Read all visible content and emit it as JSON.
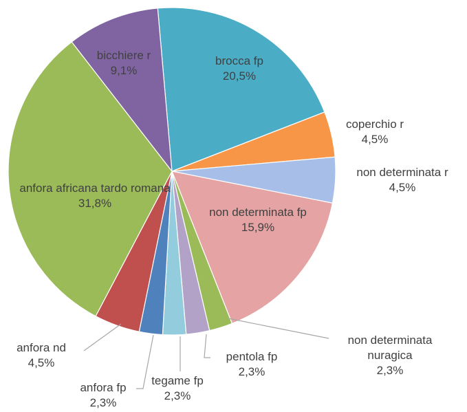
{
  "chart_data": {
    "type": "pie",
    "categories": [
      "brocca fp",
      "coperchio r",
      "non determinata r",
      "non determinata fp",
      "non determinata nuragica",
      "pentola fp",
      "tegame fp",
      "anfora fp",
      "anfora nd",
      "anfora africana tardo romana",
      "bicchiere r"
    ],
    "values": [
      20.5,
      4.5,
      4.5,
      15.9,
      2.3,
      2.3,
      2.3,
      2.3,
      4.5,
      31.8,
      9.1
    ],
    "value_labels": [
      "20,5%",
      "4,5%",
      "4,5%",
      "15,9%",
      "2,3%",
      "2,3%",
      "2,3%",
      "2,3%",
      "4,5%",
      "31,8%",
      "9,1%"
    ],
    "colors": [
      "#4bacc6",
      "#f79646",
      "#a7bfe8",
      "#e6a3a3",
      "#9bbb59",
      "#b3a2c7",
      "#93cddd",
      "#4f81bd",
      "#c0504d",
      "#9bbb59",
      "#8064a2"
    ]
  }
}
